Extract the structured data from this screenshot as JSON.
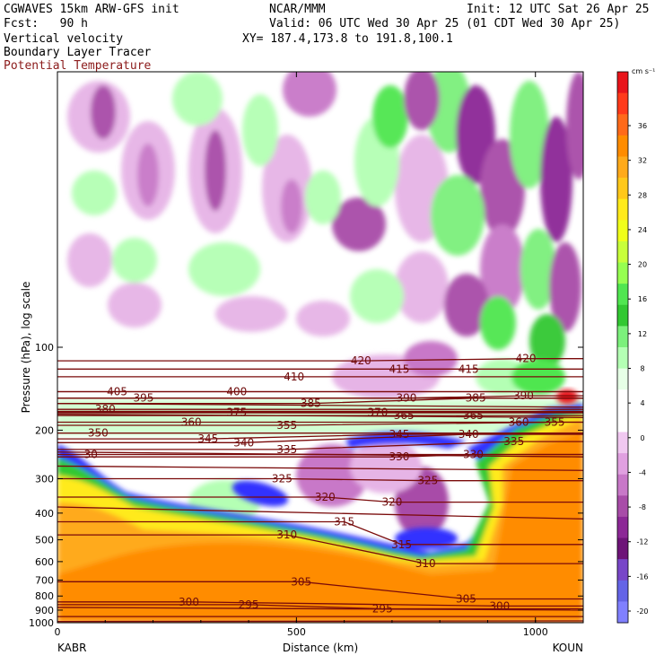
{
  "header": {
    "model": "CGWAVES 15km ARW-GFS init",
    "forecast": "Fcst:   90 h",
    "field1": "Vertical velocity",
    "field2": "Boundary Layer Tracer",
    "field3": "Potential Temperature",
    "org": "NCAR/MMM",
    "init": "Init: 12 UTC Sat 26 Apr 25",
    "valid": "Valid: 06 UTC Wed 30 Apr 25 (01 CDT Wed 30 Apr 25)",
    "xy": "XY= 187.4,173.8 to 191.8,100.1"
  },
  "chart_data": {
    "type": "heatmap",
    "xlabel": "Distance (km)",
    "ylabel": "Pressure (hPa), log scale",
    "xlim": [
      0,
      1100
    ],
    "ylim": [
      1000,
      10
    ],
    "y_scale": "log",
    "x_ticks": [
      "0",
      "500",
      "1000"
    ],
    "y_ticks": [
      "100",
      "200",
      "300",
      "400",
      "500",
      "600",
      "700",
      "800",
      "900",
      "1000"
    ],
    "x_endpoints": {
      "left": "KABR",
      "right": "KOUN"
    },
    "colorbar": {
      "unit": "cm s⁻¹",
      "ticks": [
        "36",
        "32",
        "28",
        "24",
        "20",
        "16",
        "12",
        "8",
        "4",
        "0",
        "-4",
        "-8",
        "-12",
        "-16",
        "-20"
      ],
      "colors": [
        "#e8141a",
        "#ff3a1a",
        "#ff6a1a",
        "#ff8c00",
        "#ffaa1a",
        "#ffc81a",
        "#ffea1a",
        "#f0ff1a",
        "#c8ff3a",
        "#96ff50",
        "#50e650",
        "#32c832",
        "#7cf07c",
        "#b4ffb4",
        "#e6ffe6",
        "#ffffff",
        "#ffffff",
        "#f0c8f0",
        "#e0a0e0",
        "#c878c8",
        "#a84ca8",
        "#8c2896",
        "#6e1478",
        "#7846c8",
        "#6464e6",
        "#8080ff"
      ]
    },
    "theta_labels": [
      {
        "x": 125,
        "p": 145,
        "label": "405"
      },
      {
        "x": 375,
        "p": 145,
        "label": "400"
      },
      {
        "x": 495,
        "p": 128,
        "label": "410"
      },
      {
        "x": 635,
        "p": 112,
        "label": "420"
      },
      {
        "x": 715,
        "p": 120,
        "label": "415"
      },
      {
        "x": 860,
        "p": 120,
        "label": "415"
      },
      {
        "x": 980,
        "p": 110,
        "label": "420"
      },
      {
        "x": 180,
        "p": 153,
        "label": "395"
      },
      {
        "x": 530,
        "p": 160,
        "label": "385"
      },
      {
        "x": 730,
        "p": 153,
        "label": "390"
      },
      {
        "x": 875,
        "p": 153,
        "label": "385"
      },
      {
        "x": 975,
        "p": 150,
        "label": "390"
      },
      {
        "x": 100,
        "p": 168,
        "label": "380"
      },
      {
        "x": 375,
        "p": 172,
        "label": "375"
      },
      {
        "x": 670,
        "p": 172,
        "label": "370"
      },
      {
        "x": 725,
        "p": 177,
        "label": "365"
      },
      {
        "x": 870,
        "p": 177,
        "label": "365"
      },
      {
        "x": 965,
        "p": 187,
        "label": "360"
      },
      {
        "x": 280,
        "p": 187,
        "label": "360"
      },
      {
        "x": 1040,
        "p": 187,
        "label": "355"
      },
      {
        "x": 480,
        "p": 192,
        "label": "355"
      },
      {
        "x": 85,
        "p": 205,
        "label": "350"
      },
      {
        "x": 315,
        "p": 215,
        "label": "345"
      },
      {
        "x": 715,
        "p": 207,
        "label": "345"
      },
      {
        "x": 860,
        "p": 207,
        "label": "340"
      },
      {
        "x": 390,
        "p": 222,
        "label": "340"
      },
      {
        "x": 955,
        "p": 220,
        "label": "335"
      },
      {
        "x": 480,
        "p": 235,
        "label": "335"
      },
      {
        "x": 70,
        "p": 245,
        "label": "30"
      },
      {
        "x": 715,
        "p": 250,
        "label": "330"
      },
      {
        "x": 870,
        "p": 245,
        "label": "330"
      },
      {
        "x": 470,
        "p": 300,
        "label": "325"
      },
      {
        "x": 775,
        "p": 305,
        "label": "325"
      },
      {
        "x": 560,
        "p": 350,
        "label": "320"
      },
      {
        "x": 700,
        "p": 365,
        "label": "320"
      },
      {
        "x": 600,
        "p": 430,
        "label": "315"
      },
      {
        "x": 720,
        "p": 520,
        "label": "315"
      },
      {
        "x": 480,
        "p": 480,
        "label": "310"
      },
      {
        "x": 770,
        "p": 610,
        "label": "310"
      },
      {
        "x": 510,
        "p": 710,
        "label": "305"
      },
      {
        "x": 855,
        "p": 820,
        "label": "305"
      },
      {
        "x": 400,
        "p": 860,
        "label": "295"
      },
      {
        "x": 680,
        "p": 890,
        "label": "295"
      },
      {
        "x": 275,
        "p": 840,
        "label": "300"
      },
      {
        "x": 925,
        "p": 870,
        "label": "300"
      }
    ]
  }
}
